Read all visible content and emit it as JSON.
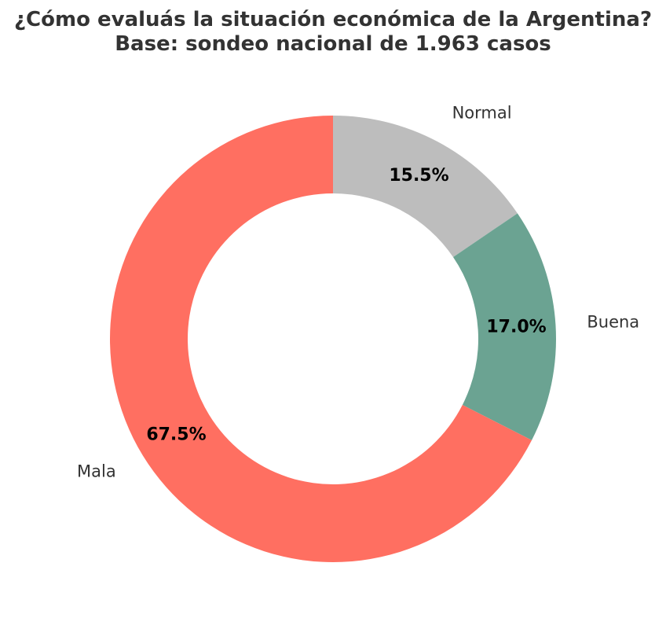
{
  "chart_data": {
    "type": "pie",
    "donut": true,
    "title_lines": [
      "¿Cómo evaluás la situación económica de la Argentina?",
      "Base: sondeo nacional de 1.963 casos"
    ],
    "slices": [
      {
        "label": "Normal",
        "value": 15.5,
        "pct_label": "15.5%",
        "color": "#bdbdbd"
      },
      {
        "label": "Buena",
        "value": 17.0,
        "pct_label": "17.0%",
        "color": "#6ba392"
      },
      {
        "label": "Mala",
        "value": 67.5,
        "pct_label": "67.5%",
        "color": "#ff6f61"
      }
    ],
    "start_angle": "top, clockwise",
    "legend": "none"
  }
}
